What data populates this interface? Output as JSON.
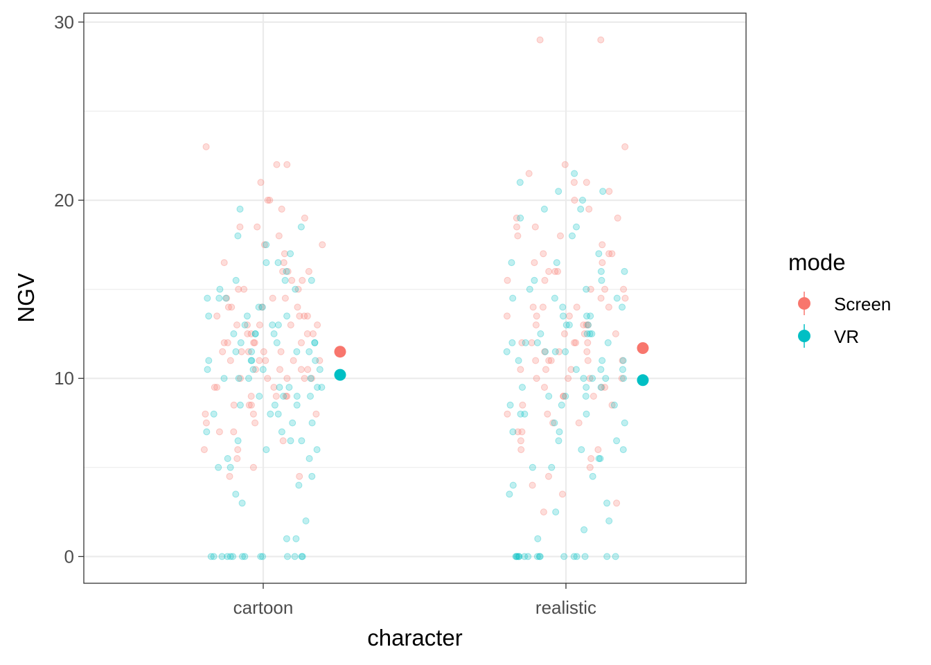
{
  "chart_data": {
    "type": "scatter",
    "xlabel": "character",
    "ylabel": "NGV",
    "categories": [
      "cartoon",
      "realistic"
    ],
    "ylim": [
      -1.5,
      30.5
    ],
    "y_ticks": [
      0,
      10,
      20,
      30
    ],
    "y_tick_labels": [
      "0",
      "10",
      "20",
      "30"
    ],
    "grid": true,
    "legend": {
      "title": "mode",
      "placement": "right"
    },
    "series": [
      {
        "name": "Screen",
        "color": "#F8766D",
        "means": [
          11.5,
          11.7
        ],
        "points": {
          "cartoon": [
            19.5,
            18.5,
            18,
            17.5,
            17,
            16.5,
            16.5,
            16,
            16,
            15.5,
            15.5,
            15,
            15,
            14.5,
            14.5,
            14,
            14,
            14,
            13.5,
            13.5,
            13.5,
            13,
            13,
            13,
            13,
            12.5,
            12.5,
            12.5,
            12,
            12,
            12,
            12,
            11.5,
            11.5,
            11.5,
            11.5,
            11,
            11,
            11,
            11,
            10.5,
            10.5,
            10.5,
            10,
            10,
            10,
            10,
            9.5,
            9.5,
            9.5,
            9,
            9,
            9,
            8.5,
            8.5,
            8.5,
            8,
            8,
            7.5,
            7.5,
            7,
            7,
            6.5,
            6,
            6,
            5.5,
            5,
            4.5,
            4.5,
            21,
            20,
            19,
            22,
            22,
            23,
            20,
            18.5,
            17.5,
            16,
            15,
            14,
            13,
            12,
            11,
            10,
            9,
            8,
            10.5,
            11.5,
            12.5,
            13.5,
            14.5
          ],
          "realistic": [
            29,
            29,
            23,
            22,
            21.5,
            21,
            21,
            20.5,
            20,
            19.5,
            19,
            19,
            18.5,
            18.5,
            18,
            17.5,
            17,
            17,
            16.5,
            16.5,
            16,
            16,
            15.5,
            15.5,
            15,
            15,
            14.5,
            14.5,
            14,
            14,
            14,
            13.5,
            13.5,
            13.5,
            13,
            13,
            13,
            12.5,
            12.5,
            12.5,
            12,
            12,
            12,
            12,
            11.5,
            11.5,
            11.5,
            11,
            11,
            11,
            11,
            10.5,
            10.5,
            10.5,
            10,
            10,
            10,
            9.5,
            9.5,
            9.5,
            9,
            9,
            8.5,
            8.5,
            8,
            8,
            7.5,
            7.5,
            7,
            7,
            6.5,
            6,
            6,
            5.5,
            5,
            4.5,
            4,
            3.5,
            3,
            2.5,
            18,
            17,
            16,
            15,
            14,
            13,
            12,
            11,
            10,
            9
          ]
        }
      },
      {
        "name": "VR",
        "color": "#00BFC4",
        "means": [
          10.2,
          9.9
        ],
        "points": {
          "cartoon": [
            19.5,
            18.5,
            18,
            17.5,
            17,
            16.5,
            16,
            15.5,
            15.5,
            15,
            15,
            14.5,
            14.5,
            14,
            14,
            13.5,
            13.5,
            13,
            13,
            13,
            12.5,
            12.5,
            12.5,
            12,
            12,
            12,
            12,
            11.5,
            11.5,
            11.5,
            11,
            11,
            11,
            11,
            10.5,
            10.5,
            10.5,
            10,
            10,
            10,
            10,
            9.5,
            9.5,
            9.5,
            9,
            9,
            9,
            9,
            8.5,
            8.5,
            8.5,
            8,
            8,
            8,
            7.5,
            7.5,
            7,
            7,
            6.5,
            6.5,
            6.5,
            6,
            6,
            5.5,
            5.5,
            5,
            5,
            4.5,
            4,
            3.5,
            3,
            2,
            1,
            1,
            0,
            0,
            0,
            0,
            0,
            0,
            0,
            0,
            0,
            0,
            0,
            0,
            0,
            0,
            16.5,
            15.5,
            14.5,
            13.5,
            12.5,
            11.5,
            10.5,
            9.5
          ],
          "realistic": [
            21.5,
            21,
            20.5,
            20.5,
            20,
            19.5,
            19.5,
            19,
            18.5,
            18,
            17,
            16.5,
            16.5,
            16,
            16,
            15.5,
            15.5,
            15,
            15,
            14.5,
            14.5,
            14,
            14,
            13.5,
            13.5,
            13,
            13,
            13,
            12.5,
            12.5,
            12.5,
            12,
            12,
            12,
            12,
            11.5,
            11.5,
            11.5,
            11,
            11,
            11,
            10.5,
            10.5,
            10.5,
            10,
            10,
            10,
            10,
            9.5,
            9.5,
            9.5,
            9,
            9,
            9,
            8.5,
            8.5,
            8.5,
            8,
            8,
            8,
            7.5,
            7.5,
            7,
            7,
            6.5,
            6.5,
            6,
            6,
            5.5,
            5.5,
            5,
            5,
            4.5,
            4,
            3.5,
            3,
            2.5,
            2,
            1.5,
            1,
            0,
            0,
            0,
            0,
            0,
            0,
            0,
            0,
            0,
            0,
            0,
            0,
            0,
            0,
            0,
            0,
            14.5,
            13.5,
            12.5,
            11.5
          ]
        }
      }
    ]
  }
}
